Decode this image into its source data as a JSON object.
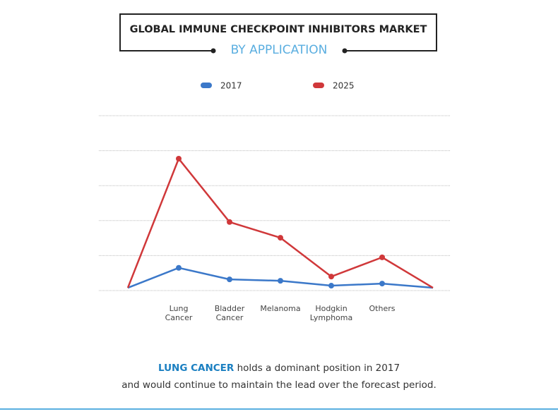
{
  "chart_data": {
    "type": "line",
    "title": "GLOBAL IMMUNE CHECKPOINT INHIBITORS MARKET",
    "subtitle": "BY APPLICATION",
    "categories": [
      null,
      "Lung Cancer",
      "Bladder Cancer",
      "Melanoma",
      "Hodgkin Lymphoma",
      "Others",
      null
    ],
    "series": [
      {
        "name": "2017",
        "color": "#3b78c9",
        "values": [
          0.08,
          0.65,
          0.32,
          0.28,
          0.14,
          0.2,
          0.08
        ]
      },
      {
        "name": "2025",
        "color": "#d0383a",
        "values": [
          0.08,
          3.77,
          1.96,
          1.51,
          0.4,
          0.95,
          0.08
        ]
      }
    ],
    "ylim": [
      0,
      5
    ],
    "grid": [
      0,
      1,
      2,
      3,
      4,
      5
    ],
    "annotation": [
      "LUNG CANCER",
      "holds a dominant position in 2017",
      "and would continue to maintain the lead over the forecast period."
    ]
  }
}
